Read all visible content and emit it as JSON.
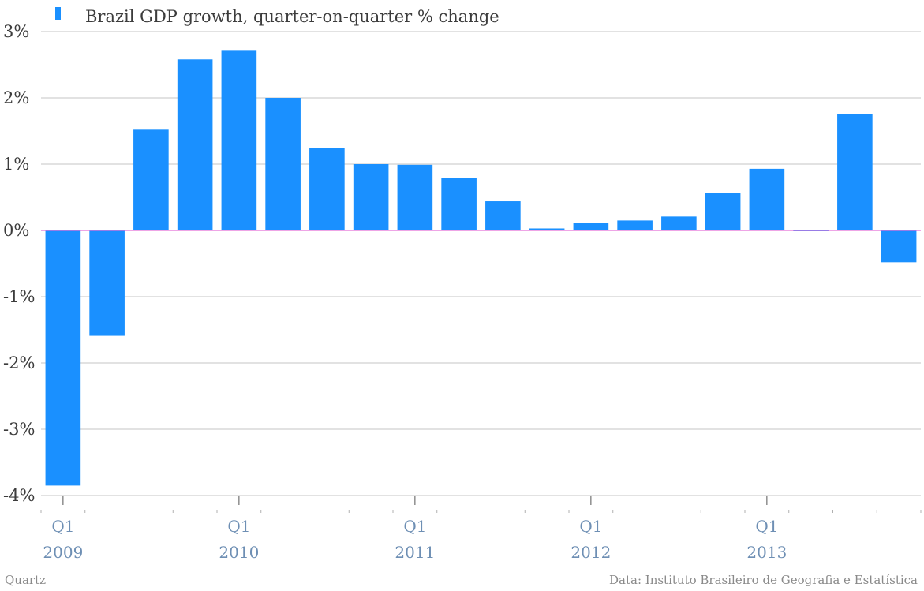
{
  "chart_data": {
    "type": "bar",
    "series": [
      {
        "name": "Brazil GDP growth, quarter-on-quarter % change",
        "color": "#1a90ff",
        "values": [
          -3.85,
          -1.59,
          1.52,
          2.58,
          2.71,
          2.0,
          1.24,
          1.0,
          0.99,
          0.79,
          0.44,
          0.03,
          0.11,
          0.15,
          0.21,
          0.56,
          0.93,
          0.0,
          1.75,
          -0.48
        ]
      }
    ],
    "categories": [
      "Q1 2009",
      "Q2 2009",
      "Q3 2009",
      "Q4 2009",
      "Q1 2010",
      "Q2 2010",
      "Q3 2010",
      "Q4 2010",
      "Q1 2011",
      "Q2 2011",
      "Q3 2011",
      "Q4 2011",
      "Q1 2012",
      "Q2 2012",
      "Q3 2012",
      "Q4 2012",
      "Q1 2013",
      "Q2 2013",
      "Q3 2013",
      "Q4 2013"
    ],
    "ylim": [
      -4,
      3
    ],
    "yticks": [
      "3%",
      "2%",
      "1%",
      "0%",
      "-1%",
      "-2%",
      "-3%",
      "-4%"
    ],
    "xtick_labels": [
      {
        "quarter": "Q1",
        "year": "2009"
      },
      {
        "quarter": "Q1",
        "year": "2010"
      },
      {
        "quarter": "Q1",
        "year": "2011"
      },
      {
        "quarter": "Q1",
        "year": "2012"
      },
      {
        "quarter": "Q1",
        "year": "2013"
      }
    ],
    "grid": true,
    "legend_position": "top-left",
    "zero_line_color": "#e36fd6"
  },
  "footer": {
    "source_left": "Quartz",
    "source_right": "Data: Instituto Brasileiro de Geografia e Estatística"
  }
}
